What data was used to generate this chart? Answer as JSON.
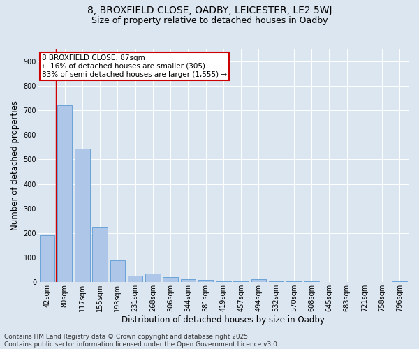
{
  "title_line1": "8, BROXFIELD CLOSE, OADBY, LEICESTER, LE2 5WJ",
  "title_line2": "Size of property relative to detached houses in Oadby",
  "xlabel": "Distribution of detached houses by size in Oadby",
  "ylabel": "Number of detached properties",
  "categories": [
    "42sqm",
    "80sqm",
    "117sqm",
    "155sqm",
    "193sqm",
    "231sqm",
    "268sqm",
    "306sqm",
    "344sqm",
    "381sqm",
    "419sqm",
    "457sqm",
    "494sqm",
    "532sqm",
    "570sqm",
    "608sqm",
    "645sqm",
    "683sqm",
    "721sqm",
    "758sqm",
    "796sqm"
  ],
  "values": [
    190,
    720,
    545,
    225,
    90,
    25,
    35,
    22,
    12,
    8,
    5,
    5,
    12,
    5,
    5,
    5,
    0,
    0,
    0,
    0,
    5
  ],
  "bar_color": "#aec6e8",
  "bar_edge_color": "#5b9bd5",
  "vline_color": "#cc0000",
  "vline_xindex": 1,
  "annotation_text": "8 BROXFIELD CLOSE: 87sqm\n← 16% of detached houses are smaller (305)\n83% of semi-detached houses are larger (1,555) →",
  "annotation_box_facecolor": "#ffffff",
  "annotation_box_edgecolor": "#cc0000",
  "background_color": "#dce6f1",
  "footer_text": "Contains HM Land Registry data © Crown copyright and database right 2025.\nContains public sector information licensed under the Open Government Licence v3.0.",
  "ylim": [
    0,
    950
  ],
  "yticks": [
    0,
    100,
    200,
    300,
    400,
    500,
    600,
    700,
    800,
    900
  ],
  "title_fontsize": 10,
  "subtitle_fontsize": 9,
  "axis_label_fontsize": 8.5,
  "tick_fontsize": 7,
  "annotation_fontsize": 7.5,
  "footer_fontsize": 6.5
}
